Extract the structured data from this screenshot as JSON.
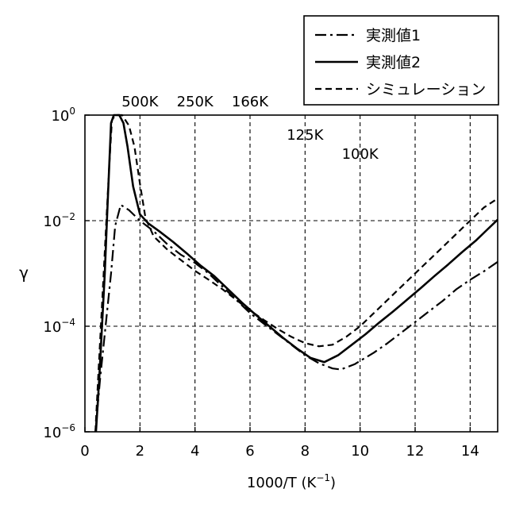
{
  "chart_data": {
    "type": "line",
    "title": "",
    "xlabel_main": "1000/T (K",
    "xlabel_sup": "−1",
    "xlabel_close": ")",
    "ylabel": "γ",
    "xlim": [
      0,
      15
    ],
    "ylim_log10": [
      -6,
      0
    ],
    "y_scale": "log",
    "grid": true,
    "grid_style": "dashed",
    "x_ticks": [
      {
        "value": 0,
        "label": "0"
      },
      {
        "value": 2,
        "label": "2"
      },
      {
        "value": 4,
        "label": "4"
      },
      {
        "value": 6,
        "label": "6"
      },
      {
        "value": 8,
        "label": "8"
      },
      {
        "value": 10,
        "label": "10"
      },
      {
        "value": 12,
        "label": "12"
      },
      {
        "value": 14,
        "label": "14"
      }
    ],
    "y_ticks": [
      {
        "exp": 0,
        "base": "10",
        "sup": "0"
      },
      {
        "exp": -2,
        "base": "10",
        "sup": "−2"
      },
      {
        "exp": -4,
        "base": "10",
        "sup": "−4"
      },
      {
        "exp": -6,
        "base": "10",
        "sup": "−6"
      }
    ],
    "temperature_labels": [
      {
        "x": 2.0,
        "label": "500K",
        "row": "top"
      },
      {
        "x": 4.0,
        "label": "250K",
        "row": "top"
      },
      {
        "x": 6.0,
        "label": "166K",
        "row": "top"
      },
      {
        "x": 8.0,
        "label": "125K",
        "row": "mid"
      },
      {
        "x": 10.0,
        "label": "100K",
        "row": "low"
      }
    ],
    "legend_position": "top-right",
    "series": [
      {
        "name": "実測値1",
        "line_style": "dashdot",
        "points": [
          [
            0.38,
            -6.0
          ],
          [
            0.55,
            -5.0
          ],
          [
            0.75,
            -4.0
          ],
          [
            0.95,
            -3.0
          ],
          [
            1.1,
            -2.1
          ],
          [
            1.3,
            -1.7
          ],
          [
            1.6,
            -1.8
          ],
          [
            2.0,
            -2.0
          ],
          [
            2.5,
            -2.2
          ],
          [
            3.0,
            -2.45
          ],
          [
            3.5,
            -2.65
          ],
          [
            4.0,
            -2.8
          ],
          [
            4.5,
            -3.0
          ],
          [
            5.0,
            -3.25
          ],
          [
            5.5,
            -3.5
          ],
          [
            6.0,
            -3.75
          ],
          [
            6.5,
            -3.95
          ],
          [
            7.0,
            -4.15
          ],
          [
            7.5,
            -4.35
          ],
          [
            8.0,
            -4.55
          ],
          [
            8.5,
            -4.7
          ],
          [
            9.0,
            -4.8
          ],
          [
            9.3,
            -4.82
          ],
          [
            9.8,
            -4.72
          ],
          [
            10.5,
            -4.5
          ],
          [
            11.0,
            -4.32
          ],
          [
            11.5,
            -4.12
          ],
          [
            12.0,
            -3.92
          ],
          [
            12.5,
            -3.72
          ],
          [
            13.0,
            -3.52
          ],
          [
            13.5,
            -3.3
          ],
          [
            14.0,
            -3.12
          ],
          [
            14.5,
            -2.96
          ],
          [
            15.0,
            -2.78
          ]
        ]
      },
      {
        "name": "実測値2",
        "line_style": "solid",
        "points": [
          [
            0.4,
            -6.0
          ],
          [
            0.52,
            -5.0
          ],
          [
            0.62,
            -4.0
          ],
          [
            0.72,
            -3.0
          ],
          [
            0.8,
            -2.0
          ],
          [
            0.88,
            -1.0
          ],
          [
            0.95,
            -0.15
          ],
          [
            1.05,
            0.0
          ],
          [
            1.25,
            0.0
          ],
          [
            1.4,
            -0.15
          ],
          [
            1.55,
            -0.6
          ],
          [
            1.75,
            -1.35
          ],
          [
            2.0,
            -1.88
          ],
          [
            2.3,
            -2.05
          ],
          [
            2.7,
            -2.2
          ],
          [
            3.2,
            -2.4
          ],
          [
            3.7,
            -2.62
          ],
          [
            4.2,
            -2.85
          ],
          [
            4.7,
            -3.05
          ],
          [
            5.2,
            -3.3
          ],
          [
            5.7,
            -3.55
          ],
          [
            6.2,
            -3.78
          ],
          [
            6.7,
            -4.0
          ],
          [
            7.2,
            -4.22
          ],
          [
            7.7,
            -4.42
          ],
          [
            8.2,
            -4.6
          ],
          [
            8.7,
            -4.68
          ],
          [
            9.2,
            -4.55
          ],
          [
            9.7,
            -4.35
          ],
          [
            10.2,
            -4.15
          ],
          [
            10.7,
            -3.93
          ],
          [
            11.2,
            -3.72
          ],
          [
            11.7,
            -3.5
          ],
          [
            12.2,
            -3.28
          ],
          [
            12.7,
            -3.05
          ],
          [
            13.2,
            -2.83
          ],
          [
            13.7,
            -2.6
          ],
          [
            14.2,
            -2.38
          ],
          [
            14.6,
            -2.18
          ],
          [
            15.0,
            -1.98
          ]
        ]
      },
      {
        "name": "シミュレーション",
        "line_style": "dashed",
        "points": [
          [
            0.38,
            -6.0
          ],
          [
            0.48,
            -5.0
          ],
          [
            0.58,
            -4.0
          ],
          [
            0.68,
            -3.0
          ],
          [
            0.78,
            -2.0
          ],
          [
            0.88,
            -1.0
          ],
          [
            0.98,
            -0.1
          ],
          [
            1.1,
            0.0
          ],
          [
            1.35,
            0.0
          ],
          [
            1.6,
            -0.2
          ],
          [
            1.8,
            -0.6
          ],
          [
            2.0,
            -1.3
          ],
          [
            2.2,
            -1.95
          ],
          [
            2.5,
            -2.3
          ],
          [
            3.0,
            -2.55
          ],
          [
            3.5,
            -2.75
          ],
          [
            4.0,
            -2.95
          ],
          [
            4.5,
            -3.12
          ],
          [
            5.0,
            -3.3
          ],
          [
            5.5,
            -3.5
          ],
          [
            6.0,
            -3.7
          ],
          [
            6.5,
            -3.88
          ],
          [
            7.0,
            -4.05
          ],
          [
            7.5,
            -4.2
          ],
          [
            8.0,
            -4.32
          ],
          [
            8.5,
            -4.38
          ],
          [
            9.0,
            -4.35
          ],
          [
            9.5,
            -4.2
          ],
          [
            10.0,
            -4.0
          ],
          [
            10.5,
            -3.75
          ],
          [
            11.0,
            -3.5
          ],
          [
            11.5,
            -3.25
          ],
          [
            12.0,
            -3.0
          ],
          [
            12.5,
            -2.75
          ],
          [
            13.0,
            -2.5
          ],
          [
            13.5,
            -2.25
          ],
          [
            14.0,
            -2.0
          ],
          [
            14.5,
            -1.75
          ],
          [
            15.0,
            -1.58
          ]
        ]
      }
    ]
  }
}
